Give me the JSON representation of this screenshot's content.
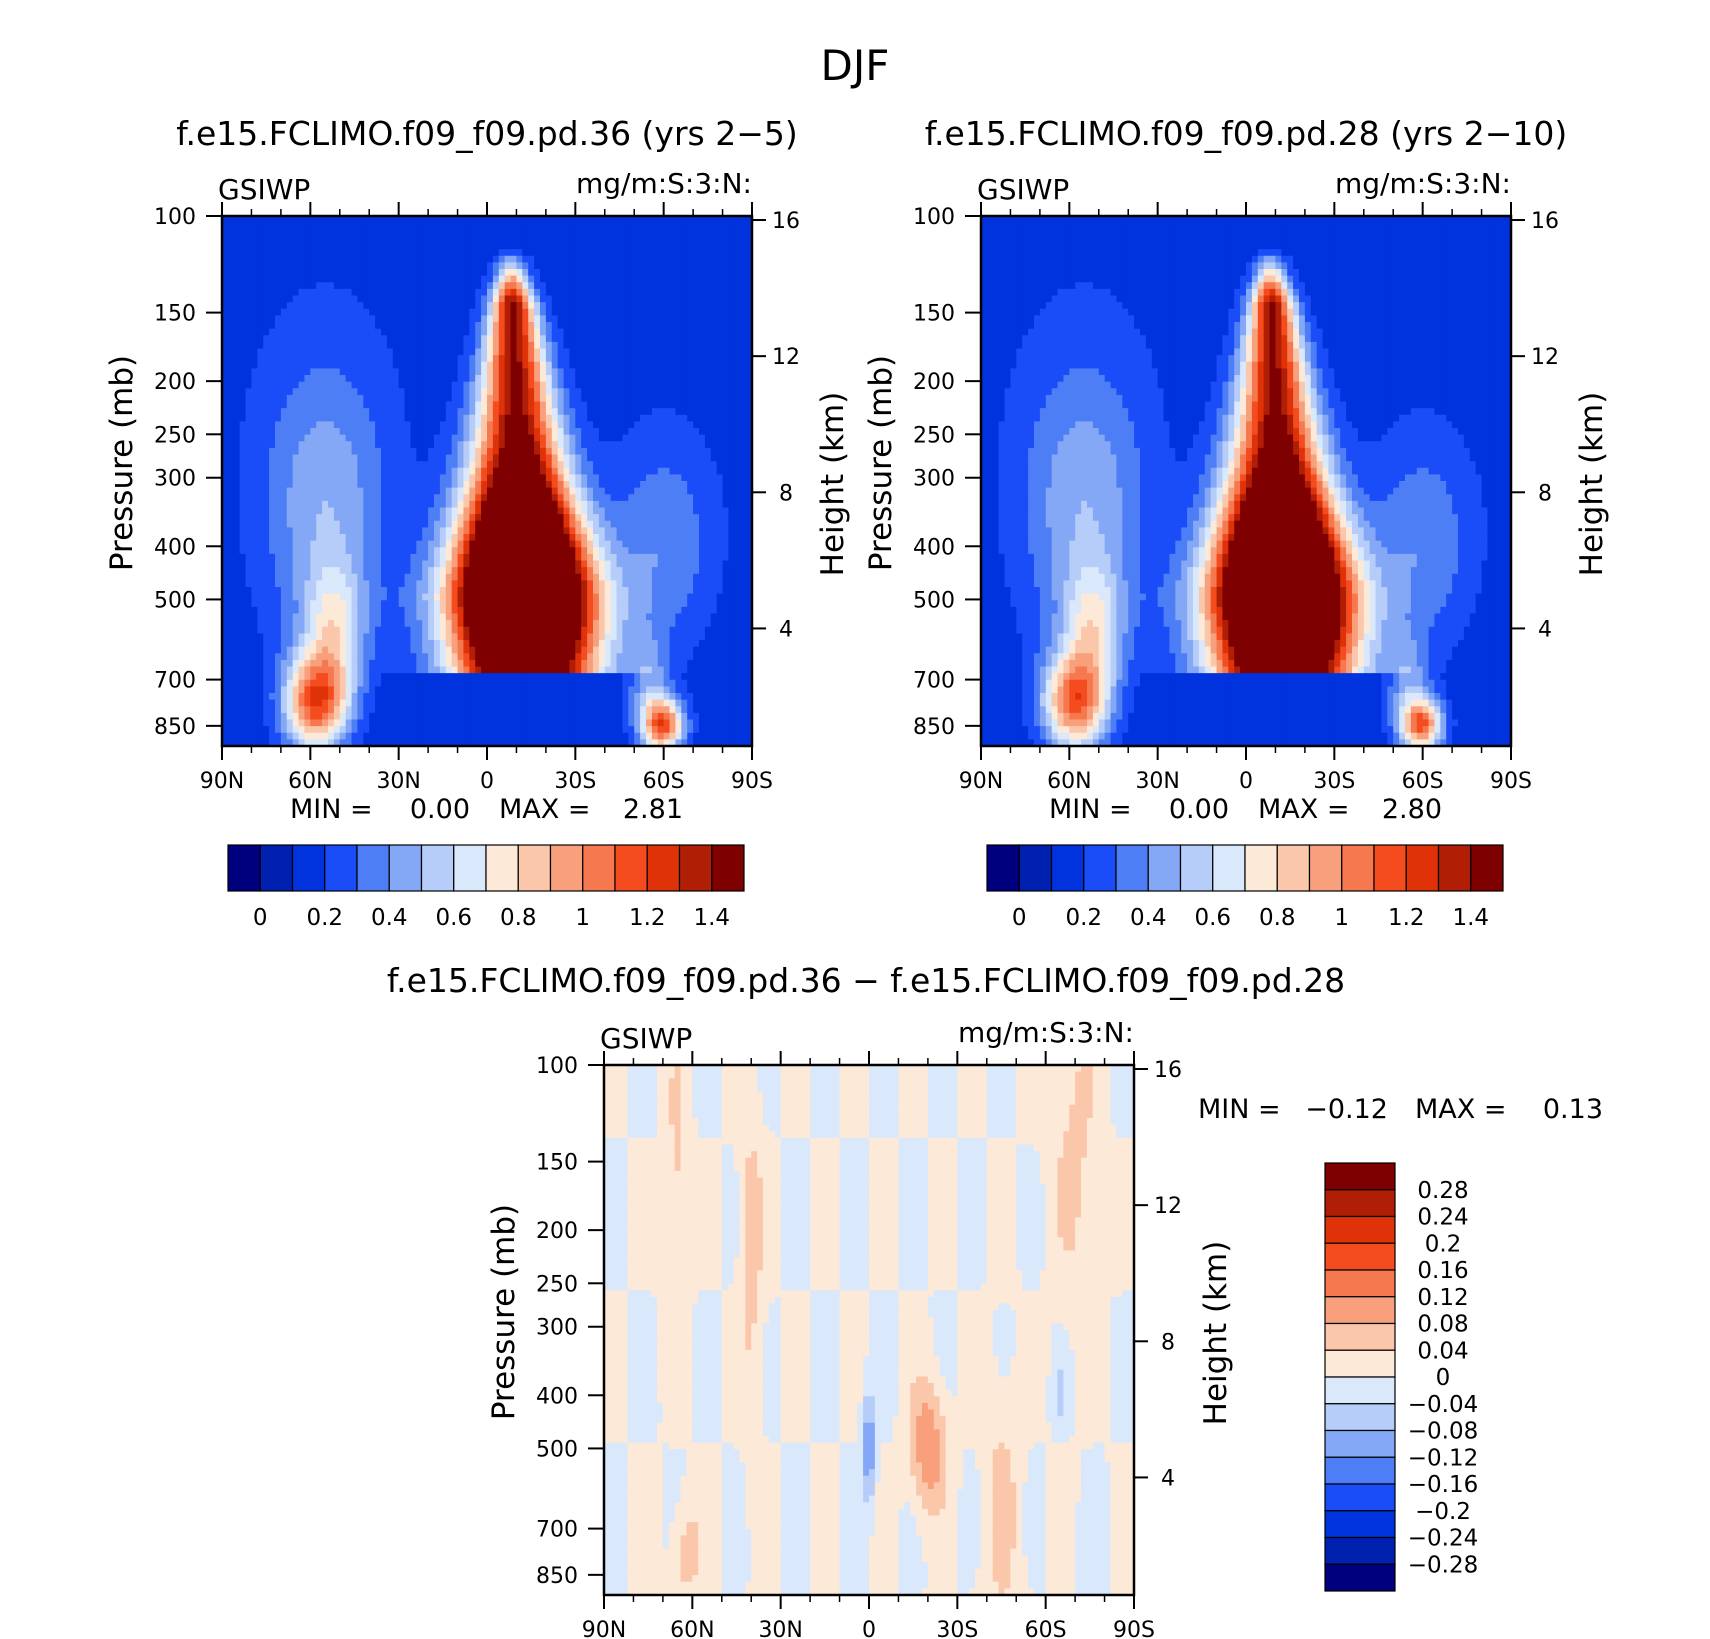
{
  "page_title": "DJF",
  "panels": [
    {
      "id": "a",
      "title": "f.e15.FCLIMO.f09_f09.pd.36 (yrs 2−5)",
      "left_label": "GSIWP",
      "right_label": "mg/m:S:3:N:",
      "ylabel": "Pressure (mb)",
      "ylabel_right": "Height (km)",
      "stats": {
        "min_label": "MIN =",
        "min_value": "0.00",
        "max_label": "MAX =",
        "max_value": "2.81"
      },
      "field": {
        "tropic_peak": 2.81,
        "nh_midlat_low": 1.0,
        "sh_midlat_low": 0.95
      }
    },
    {
      "id": "b",
      "title": "f.e15.FCLIMO.f09_f09.pd.28 (yrs 2−10)",
      "left_label": "GSIWP",
      "right_label": "mg/m:S:3:N:",
      "ylabel": "Pressure (mb)",
      "ylabel_right": "Height (km)",
      "stats": {
        "min_label": "MIN =",
        "min_value": "0.00",
        "max_label": "MAX =",
        "max_value": "2.80"
      },
      "field": {
        "tropic_peak": 2.8,
        "nh_midlat_low": 0.95,
        "sh_midlat_low": 0.9
      }
    },
    {
      "id": "c",
      "title": "f.e15.FCLIMO.f09_f09.pd.36 − f.e15.FCLIMO.f09_f09.pd.28",
      "left_label": "GSIWP",
      "right_label": "mg/m:S:3:N:",
      "ylabel": "Pressure (mb)",
      "ylabel_right": "Height (km)",
      "stats": {
        "min_label": "MIN =",
        "min_value": "−0.12",
        "max_label": "MAX =",
        "max_value": "0.13"
      }
    }
  ],
  "axes": {
    "x_ticks": [
      "90N",
      "60N",
      "30N",
      "0",
      "30S",
      "60S",
      "90S"
    ],
    "x_values": [
      90,
      60,
      30,
      0,
      -30,
      -60,
      -90
    ],
    "p_ticks": [
      100,
      150,
      200,
      250,
      300,
      400,
      500,
      700,
      850
    ],
    "p_range": [
      100,
      925
    ],
    "h_ticks": [
      16,
      12,
      8,
      4
    ],
    "h_scale_km": 7
  },
  "colorbar_main": {
    "colors": [
      "#00007f",
      "#0020b0",
      "#0033dd",
      "#1a4cf7",
      "#4d7ef5",
      "#84a8f5",
      "#b5cdf8",
      "#d9e8fb",
      "#fde9d8",
      "#fbc7ab",
      "#f8a07c",
      "#f6784f",
      "#f44c1f",
      "#e03208",
      "#b01e06",
      "#7f0000"
    ],
    "labels": [
      "0",
      "0.2",
      "0.4",
      "0.6",
      "0.8",
      "1",
      "1.2",
      "1.4"
    ],
    "levels": [
      0,
      0.1,
      0.2,
      0.3,
      0.4,
      0.5,
      0.6,
      0.7,
      0.8,
      0.9,
      1.0,
      1.1,
      1.2,
      1.3,
      1.4
    ]
  },
  "colorbar_diff": {
    "colors": [
      "#7f0000",
      "#b01e06",
      "#e03208",
      "#f44c1f",
      "#f6784f",
      "#f8a07c",
      "#fbc7ab",
      "#fde9d8",
      "#d9e8fb",
      "#b5cdf8",
      "#84a8f5",
      "#4d7ef5",
      "#1a4cf7",
      "#0033dd",
      "#0020b0",
      "#00007f"
    ],
    "labels": [
      "0.28",
      "0.24",
      "0.2",
      "0.16",
      "0.12",
      "0.08",
      "0.04",
      "0",
      "−0.04",
      "−0.08",
      "−0.12",
      "−0.16",
      "−0.2",
      "−0.24",
      "−0.28"
    ],
    "levels": [
      0.28,
      0.24,
      0.2,
      0.16,
      0.12,
      0.08,
      0.04,
      0,
      -0.04,
      -0.08,
      -0.12,
      -0.16,
      -0.2,
      -0.24,
      -0.28
    ]
  },
  "chart_data": [
    {
      "type": "heatmap",
      "title": "f.e15.FCLIMO.f09_f09.pd.36 (yrs 2−5)",
      "ylabel": "Pressure (mb)",
      "xlabel": "",
      "x_ticks": [
        "90N",
        "60N",
        "30N",
        "0",
        "30S",
        "60S",
        "90S"
      ],
      "y_ticks": [
        100,
        150,
        200,
        250,
        300,
        400,
        500,
        700,
        850
      ],
      "min": 0.0,
      "max": 2.81
    },
    {
      "type": "heatmap",
      "title": "f.e15.FCLIMO.f09_f09.pd.28 (yrs 2−10)",
      "ylabel": "Pressure (mb)",
      "xlabel": "",
      "x_ticks": [
        "90N",
        "60N",
        "30N",
        "0",
        "30S",
        "60S",
        "90S"
      ],
      "y_ticks": [
        100,
        150,
        200,
        250,
        300,
        400,
        500,
        700,
        850
      ],
      "min": 0.0,
      "max": 2.8
    },
    {
      "type": "heatmap",
      "title": "f.e15.FCLIMO.f09_f09.pd.36 − f.e15.FCLIMO.f09_f09.pd.28",
      "ylabel": "Pressure (mb)",
      "xlabel": "",
      "x_ticks": [
        "90N",
        "60N",
        "30N",
        "0",
        "30S",
        "60S",
        "90S"
      ],
      "y_ticks": [
        100,
        150,
        200,
        250,
        300,
        400,
        500,
        700,
        850
      ],
      "min": -0.12,
      "max": 0.13
    }
  ]
}
